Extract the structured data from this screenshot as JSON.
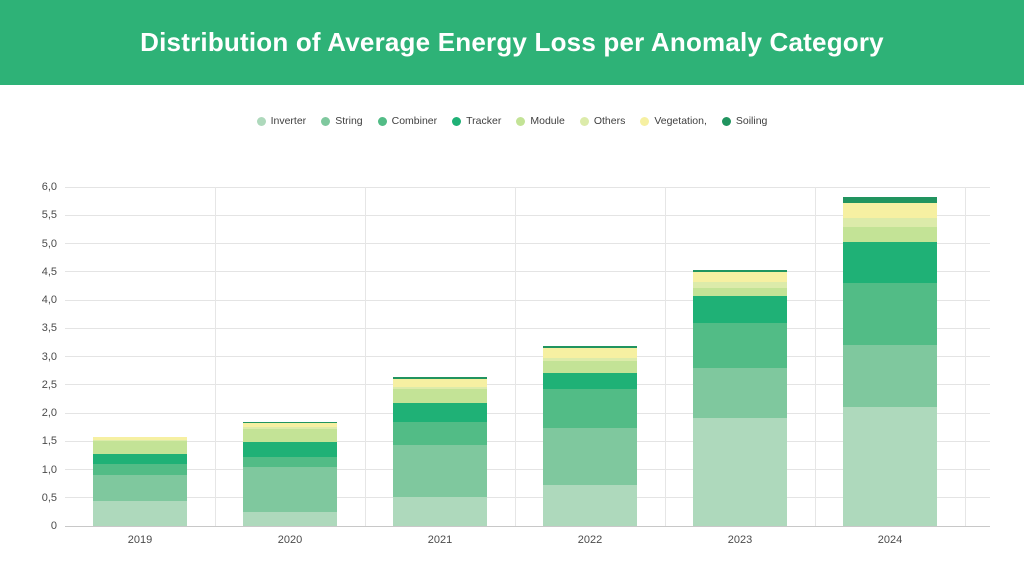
{
  "header": {
    "title": "Distribution of Average Energy Loss per Anomaly Category",
    "background_color": "#2eb277",
    "text_color": "#ffffff"
  },
  "legend": {
    "items": [
      {
        "label": "Inverter",
        "color": "#aed9bc"
      },
      {
        "label": "String",
        "color": "#7fc89e"
      },
      {
        "label": "Combiner",
        "color": "#52bc86"
      },
      {
        "label": "Tracker",
        "color": "#1fb176"
      },
      {
        "label": "Module",
        "color": "#c3e396"
      },
      {
        "label": "Others",
        "color": "#dcebaa"
      },
      {
        "label": "Vegetation,",
        "color": "#f6f0a2"
      },
      {
        "label": "Soiling",
        "color": "#21945f"
      }
    ]
  },
  "chart_data": {
    "type": "bar",
    "stacked": true,
    "title": "Distribution of Average Energy Loss per Anomaly Category",
    "xlabel": "",
    "ylabel": "",
    "categories": [
      "2019",
      "2020",
      "2021",
      "2022",
      "2023",
      "2024"
    ],
    "series": [
      {
        "name": "Inverter",
        "color": "#aed9bc",
        "values": [
          0.45,
          0.24,
          0.52,
          0.72,
          1.92,
          2.1
        ]
      },
      {
        "name": "String",
        "color": "#7fc89e",
        "values": [
          0.45,
          0.81,
          0.92,
          1.02,
          0.88,
          1.1
        ]
      },
      {
        "name": "Combiner",
        "color": "#52bc86",
        "values": [
          0.2,
          0.18,
          0.41,
          0.69,
          0.8,
          1.1
        ]
      },
      {
        "name": "Tracker",
        "color": "#1fb176",
        "values": [
          0.18,
          0.26,
          0.33,
          0.27,
          0.48,
          0.72
        ]
      },
      {
        "name": "Module",
        "color": "#c3e396",
        "values": [
          0.22,
          0.22,
          0.24,
          0.22,
          0.14,
          0.27
        ]
      },
      {
        "name": "Others",
        "color": "#dcebaa",
        "values": [
          0.03,
          0.04,
          0.05,
          0.06,
          0.1,
          0.16
        ]
      },
      {
        "name": "Vegetation,",
        "color": "#f6f0a2",
        "values": [
          0.05,
          0.07,
          0.13,
          0.17,
          0.17,
          0.27
        ]
      },
      {
        "name": "Soiling",
        "color": "#21945f",
        "values": [
          0.0,
          0.03,
          0.03,
          0.04,
          0.05,
          0.11
        ]
      }
    ],
    "totals": [
      1.58,
      1.85,
      2.63,
      3.19,
      4.54,
      5.83
    ],
    "ylim": [
      0,
      6.0
    ],
    "ytick_step": 0.5,
    "ytick_labels": [
      "0",
      "0,5",
      "1,0",
      "1,5",
      "2,0",
      "2,5",
      "3,0",
      "3,5",
      "4,0",
      "4,5",
      "5,0",
      "5,5",
      "6,0"
    ],
    "grid": true,
    "legend_position": "top"
  }
}
